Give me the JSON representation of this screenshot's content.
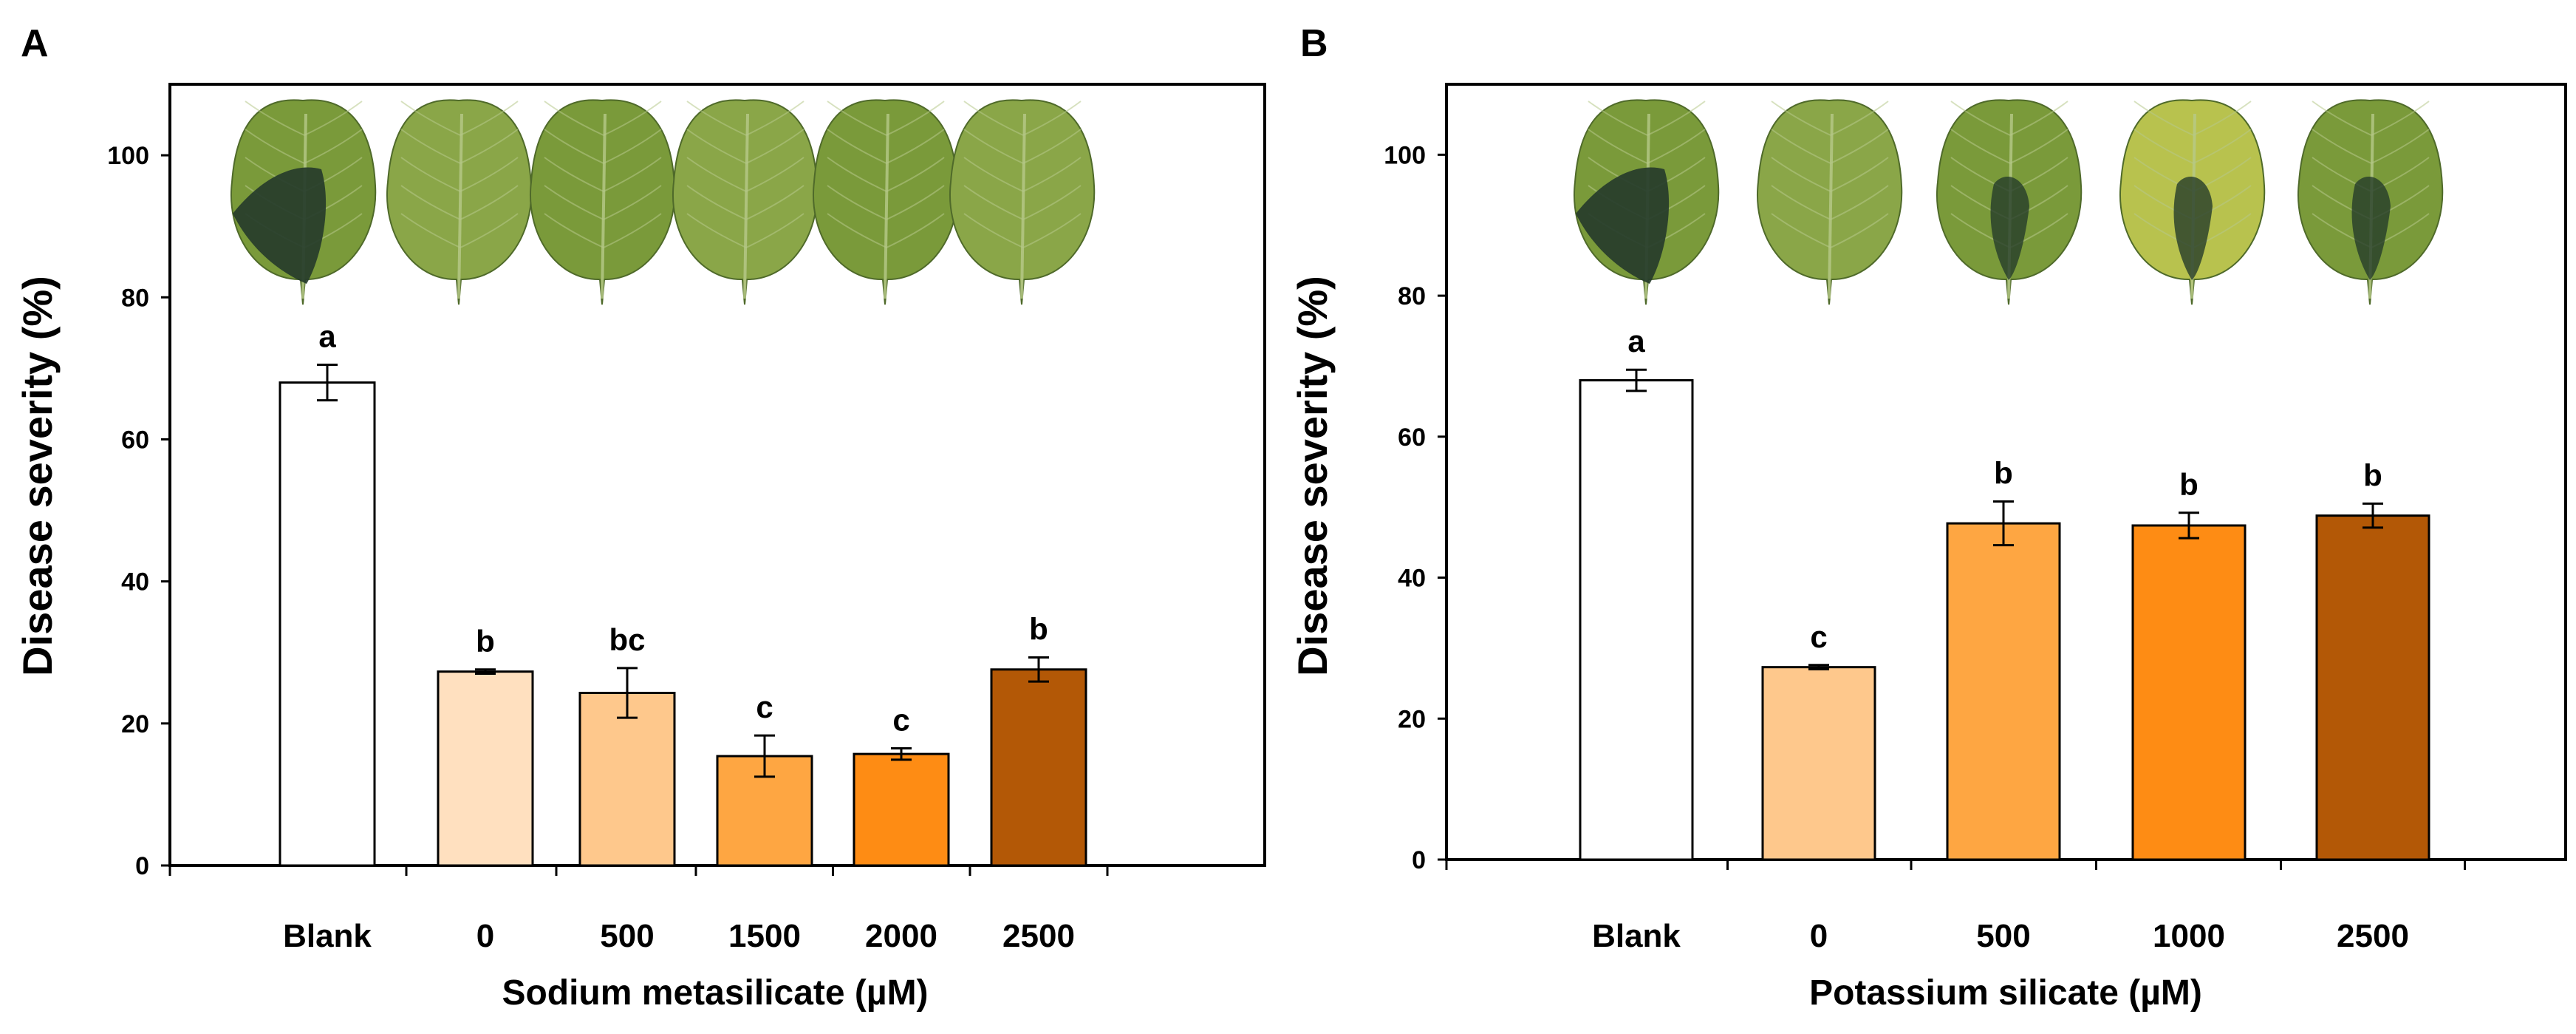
{
  "colors": {
    "frame": "#000000",
    "leaf_green": "#7a9a3a",
    "leaf_yellow_green": "#a9b84a",
    "leaf_dark": "#263c2b",
    "leaf_vein": "#b7c98a"
  },
  "chart_data": [
    {
      "panel_label": "A",
      "type": "bar",
      "title": "",
      "xlabel": "Sodium metasilicate (µM)",
      "ylabel": "Disease severity (%)",
      "ylim": [
        0,
        110
      ],
      "yticks": [
        0,
        20,
        40,
        60,
        80,
        100
      ],
      "grid": false,
      "categories": [
        "Blank",
        "0",
        "500",
        "1500",
        "2000",
        "2500"
      ],
      "values": [
        68,
        27.3,
        24.3,
        15.4,
        15.7,
        27.6
      ],
      "errors": [
        2.5,
        0.3,
        3.5,
        2.9,
        0.8,
        1.7
      ],
      "letters": [
        "a",
        "b",
        "bc",
        "c",
        "c",
        "b"
      ],
      "bar_colors": [
        "#ffffff",
        "#ffe0bf",
        "#fec88c",
        "#fea642",
        "#fe8c14",
        "#b35806"
      ],
      "leaf_images": [
        {
          "icon": "leaf-icon",
          "lesion": "severe"
        },
        {
          "icon": "leaf-icon",
          "lesion": "none"
        },
        {
          "icon": "leaf-icon",
          "lesion": "none"
        },
        {
          "icon": "leaf-icon",
          "lesion": "none"
        },
        {
          "icon": "leaf-icon",
          "lesion": "none"
        },
        {
          "icon": "leaf-icon",
          "lesion": "none"
        }
      ]
    },
    {
      "panel_label": "B",
      "type": "bar",
      "title": "",
      "xlabel": "Potassium silicate (µM)",
      "ylabel": "Disease severity (%)",
      "ylim": [
        0,
        110
      ],
      "yticks": [
        0,
        20,
        40,
        60,
        80,
        100
      ],
      "grid": false,
      "categories": [
        "Blank",
        "0",
        "500",
        "1000",
        "2500"
      ],
      "values": [
        68,
        27.3,
        47.7,
        47.4,
        48.8
      ],
      "errors": [
        1.5,
        0.3,
        3.1,
        1.8,
        1.7
      ],
      "letters": [
        "a",
        "c",
        "b",
        "b",
        "b"
      ],
      "bar_colors": [
        "#ffffff",
        "#fec88c",
        "#fea642",
        "#fe8c14",
        "#b35806"
      ],
      "leaf_images": [
        {
          "icon": "leaf-icon",
          "lesion": "severe"
        },
        {
          "icon": "leaf-icon",
          "lesion": "none"
        },
        {
          "icon": "leaf-icon",
          "lesion": "moderate"
        },
        {
          "icon": "leaf-icon",
          "lesion": "moderate"
        },
        {
          "icon": "leaf-icon",
          "lesion": "moderate"
        }
      ]
    }
  ]
}
